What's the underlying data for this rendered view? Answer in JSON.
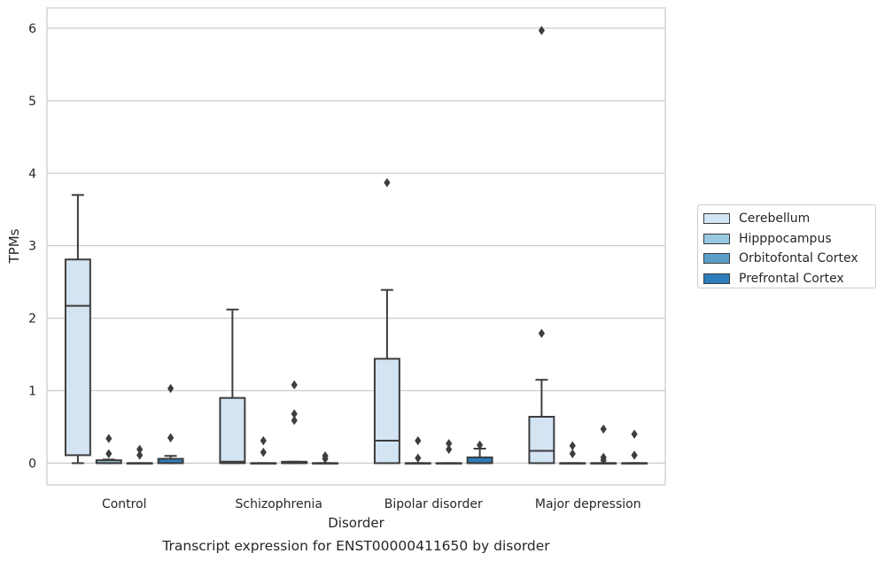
{
  "chart_data": {
    "type": "box",
    "title": "Transcript expression for ENST00000411650 by disorder",
    "xlabel": "Disorder",
    "ylabel": "TPMs",
    "ylim": [
      -0.3,
      6.28
    ],
    "yticks": [
      0,
      1,
      2,
      3,
      4,
      5,
      6
    ],
    "grid": true,
    "legend_position": "right",
    "categories": [
      "Control",
      "Schizophrenia",
      "Bipolar disorder",
      "Major depression"
    ],
    "series": [
      {
        "name": "Cerebellum",
        "color": "#d3e4f3",
        "boxes": [
          {
            "whislo": 0.0,
            "q1": 0.11,
            "med": 2.17,
            "q3": 2.81,
            "whishi": 3.7,
            "fliers": []
          },
          {
            "whislo": 0.0,
            "q1": 0.0,
            "med": 0.02,
            "q3": 0.9,
            "whishi": 2.12,
            "fliers": []
          },
          {
            "whislo": 0.0,
            "q1": 0.0,
            "med": 0.31,
            "q3": 1.44,
            "whishi": 2.39,
            "fliers": [
              3.87
            ]
          },
          {
            "whislo": 0.0,
            "q1": 0.0,
            "med": 0.17,
            "q3": 0.64,
            "whishi": 1.15,
            "fliers": [
              1.79,
              5.97
            ]
          }
        ]
      },
      {
        "name": "Hipppocampus",
        "color": "#9ac8e0",
        "boxes": [
          {
            "whislo": 0.0,
            "q1": 0.0,
            "med": 0.0,
            "q3": 0.04,
            "whishi": 0.05,
            "fliers": [
              0.13,
              0.34
            ]
          },
          {
            "whislo": 0.0,
            "q1": 0.0,
            "med": 0.0,
            "q3": 0.0,
            "whishi": 0.0,
            "fliers": [
              0.15,
              0.31
            ]
          },
          {
            "whislo": 0.0,
            "q1": 0.0,
            "med": 0.0,
            "q3": 0.0,
            "whishi": 0.0,
            "fliers": [
              0.07,
              0.31
            ]
          },
          {
            "whislo": 0.0,
            "q1": 0.0,
            "med": 0.0,
            "q3": 0.0,
            "whishi": 0.0,
            "fliers": [
              0.13,
              0.24
            ]
          }
        ]
      },
      {
        "name": "Orbitofontal Cortex",
        "color": "#5b9ec9",
        "boxes": [
          {
            "whislo": 0.0,
            "q1": 0.0,
            "med": 0.0,
            "q3": 0.0,
            "whishi": 0.0,
            "fliers": [
              0.11,
              0.19
            ]
          },
          {
            "whislo": 0.0,
            "q1": 0.0,
            "med": 0.0,
            "q3": 0.02,
            "whishi": 0.02,
            "fliers": [
              0.59,
              0.68,
              1.08
            ]
          },
          {
            "whislo": 0.0,
            "q1": 0.0,
            "med": 0.0,
            "q3": 0.0,
            "whishi": 0.0,
            "fliers": [
              0.19,
              0.27
            ]
          },
          {
            "whislo": 0.0,
            "q1": 0.0,
            "med": 0.0,
            "q3": 0.0,
            "whishi": 0.0,
            "fliers": [
              0.04,
              0.08,
              0.47
            ]
          }
        ]
      },
      {
        "name": "Prefrontal Cortex",
        "color": "#2d7dbb",
        "boxes": [
          {
            "whislo": 0.0,
            "q1": 0.0,
            "med": 0.0,
            "q3": 0.06,
            "whishi": 0.1,
            "fliers": [
              0.35,
              1.03
            ]
          },
          {
            "whislo": 0.0,
            "q1": 0.0,
            "med": 0.0,
            "q3": 0.0,
            "whishi": 0.0,
            "fliers": [
              0.06,
              0.1
            ]
          },
          {
            "whislo": 0.0,
            "q1": 0.0,
            "med": 0.0,
            "q3": 0.08,
            "whishi": 0.2,
            "fliers": [
              0.25
            ]
          },
          {
            "whislo": 0.0,
            "q1": 0.0,
            "med": 0.0,
            "q3": 0.0,
            "whishi": 0.0,
            "fliers": [
              0.11,
              0.4
            ]
          }
        ]
      }
    ]
  }
}
